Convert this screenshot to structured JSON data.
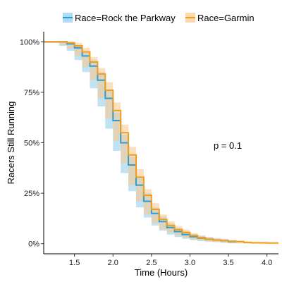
{
  "chart_data": {
    "type": "line",
    "xlabel": "Time (Hours)",
    "ylabel": "Racers Still Running",
    "xlim": [
      1.1,
      4.15
    ],
    "ylim": [
      -0.05,
      1.05
    ],
    "x_ticks": [
      1.5,
      2.0,
      2.5,
      3.0,
      3.5,
      4.0
    ],
    "x_tick_labels": [
      "1.5",
      "2.0",
      "2.5",
      "3.0",
      "3.5",
      "4.0"
    ],
    "y_ticks": [
      0,
      0.25,
      0.5,
      0.75,
      1.0
    ],
    "y_tick_labels": [
      "0%",
      "25%",
      "50%",
      "75%",
      "100%"
    ],
    "annotation": "p = 0.1",
    "grid": false,
    "legend_position": "top",
    "series": [
      {
        "name": "Race=Rock the Parkway",
        "color": "#2b9ed6",
        "band_color": "#8ecbe8",
        "x": [
          1.1,
          1.3,
          1.4,
          1.5,
          1.6,
          1.7,
          1.8,
          1.9,
          2.0,
          2.1,
          2.2,
          2.3,
          2.4,
          2.5,
          2.6,
          2.7,
          2.8,
          2.9,
          3.0,
          3.1,
          3.2,
          3.3,
          3.4,
          3.5,
          3.6
        ],
        "y": [
          1.0,
          1.0,
          0.99,
          0.97,
          0.93,
          0.88,
          0.81,
          0.72,
          0.61,
          0.5,
          0.39,
          0.29,
          0.21,
          0.15,
          0.11,
          0.08,
          0.06,
          0.045,
          0.035,
          0.028,
          0.022,
          0.018,
          0.015,
          0.01,
          0.008
        ],
        "lower": [
          1.0,
          0.995,
          0.98,
          0.955,
          0.91,
          0.85,
          0.77,
          0.68,
          0.57,
          0.46,
          0.35,
          0.26,
          0.18,
          0.13,
          0.09,
          0.065,
          0.045,
          0.033,
          0.024,
          0.018,
          0.013,
          0.01,
          0.008,
          0.004,
          0.002
        ],
        "upper": [
          1.0,
          1.0,
          1.0,
          0.985,
          0.95,
          0.91,
          0.85,
          0.76,
          0.65,
          0.54,
          0.43,
          0.33,
          0.25,
          0.18,
          0.135,
          0.1,
          0.077,
          0.06,
          0.048,
          0.04,
          0.033,
          0.028,
          0.024,
          0.018,
          0.015
        ]
      },
      {
        "name": "Race=Garmin",
        "color": "#f39c1f",
        "band_color": "#f7c98a",
        "x": [
          1.1,
          1.3,
          1.4,
          1.5,
          1.6,
          1.7,
          1.8,
          1.9,
          2.0,
          2.1,
          2.2,
          2.3,
          2.4,
          2.5,
          2.6,
          2.7,
          2.8,
          2.9,
          3.0,
          3.1,
          3.2,
          3.3,
          3.4,
          3.5,
          3.6,
          3.7,
          3.8,
          3.9,
          4.0,
          4.15
        ],
        "y": [
          1.0,
          1.0,
          0.995,
          0.98,
          0.95,
          0.9,
          0.84,
          0.76,
          0.66,
          0.55,
          0.44,
          0.33,
          0.24,
          0.17,
          0.12,
          0.09,
          0.07,
          0.055,
          0.04,
          0.03,
          0.022,
          0.018,
          0.015,
          0.012,
          0.01,
          0.006,
          0.004,
          0.004,
          0.003,
          0.003
        ],
        "lower": [
          1.0,
          0.995,
          0.985,
          0.965,
          0.93,
          0.875,
          0.81,
          0.72,
          0.62,
          0.51,
          0.4,
          0.29,
          0.21,
          0.145,
          0.1,
          0.072,
          0.055,
          0.042,
          0.03,
          0.021,
          0.015,
          0.011,
          0.009,
          0.006,
          0.004,
          0.002,
          0.001,
          0.001,
          0.0,
          0.0
        ],
        "upper": [
          1.0,
          1.0,
          1.0,
          0.995,
          0.97,
          0.925,
          0.87,
          0.8,
          0.7,
          0.59,
          0.48,
          0.37,
          0.27,
          0.2,
          0.145,
          0.11,
          0.088,
          0.07,
          0.052,
          0.04,
          0.031,
          0.026,
          0.022,
          0.018,
          0.016,
          0.012,
          0.01,
          0.01,
          0.008,
          0.008
        ]
      }
    ]
  }
}
